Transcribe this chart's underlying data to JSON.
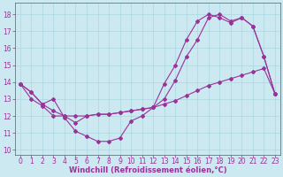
{
  "xlabel": "Windchill (Refroidissement éolien,°C)",
  "bg_color": "#cce8f0",
  "line_color": "#993399",
  "xlim": [
    -0.5,
    23.5
  ],
  "ylim": [
    9.7,
    18.7
  ],
  "yticks": [
    10,
    11,
    12,
    13,
    14,
    15,
    16,
    17,
    18
  ],
  "xticks": [
    0,
    1,
    2,
    3,
    4,
    5,
    6,
    7,
    8,
    9,
    10,
    11,
    12,
    13,
    14,
    15,
    16,
    17,
    18,
    19,
    20,
    21,
    22,
    23
  ],
  "series1_x": [
    0,
    1,
    2,
    3,
    4,
    5,
    6,
    7,
    8,
    9,
    10,
    11,
    12,
    13,
    14,
    15,
    16,
    17,
    18,
    19,
    20,
    21,
    22,
    23
  ],
  "series1_y": [
    13.9,
    13.4,
    12.7,
    13.0,
    11.9,
    11.1,
    10.8,
    10.5,
    10.5,
    10.7,
    11.7,
    12.0,
    12.5,
    13.9,
    15.0,
    16.5,
    17.6,
    18.0,
    17.8,
    17.5,
    17.8,
    17.3,
    15.5,
    13.3
  ],
  "series2_x": [
    0,
    1,
    2,
    3,
    4,
    5,
    6,
    7,
    8,
    9,
    10,
    11,
    12,
    13,
    14,
    15,
    16,
    17,
    18,
    19,
    20,
    21,
    22,
    23
  ],
  "series2_y": [
    13.9,
    13.4,
    12.7,
    12.3,
    12.0,
    11.6,
    12.0,
    12.1,
    12.1,
    12.2,
    12.3,
    12.4,
    12.5,
    13.0,
    14.1,
    15.5,
    16.5,
    17.8,
    18.0,
    17.6,
    17.8,
    17.3,
    15.5,
    13.3
  ],
  "series3_x": [
    0,
    1,
    2,
    3,
    4,
    5,
    6,
    7,
    8,
    9,
    10,
    11,
    12,
    13,
    14,
    15,
    16,
    17,
    18,
    19,
    20,
    21,
    22,
    23
  ],
  "series3_y": [
    13.9,
    13.0,
    12.6,
    12.0,
    12.0,
    12.0,
    12.0,
    12.1,
    12.1,
    12.2,
    12.3,
    12.4,
    12.5,
    12.7,
    12.9,
    13.2,
    13.5,
    13.8,
    14.0,
    14.2,
    14.4,
    14.6,
    14.8,
    13.3
  ],
  "grid_color": "#aad8e0",
  "font_color": "#993399",
  "font_size": 5.5,
  "xlabel_font_size": 6.0
}
